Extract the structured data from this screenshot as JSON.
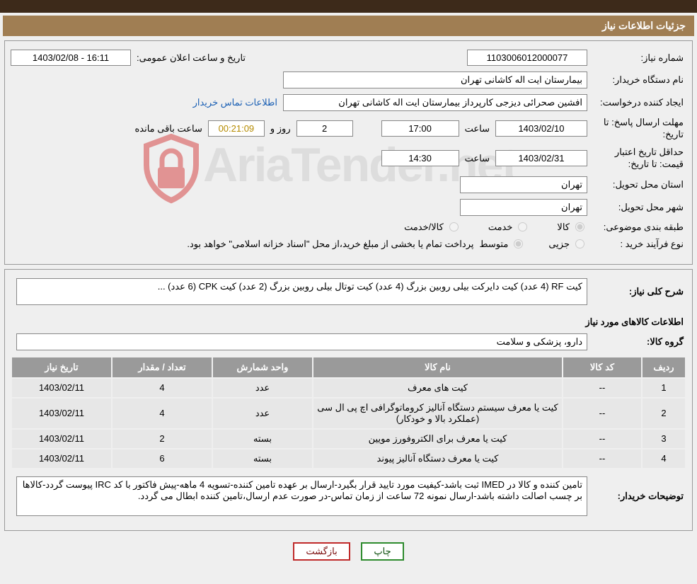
{
  "titleBar": "جزئیات اطلاعات نیاز",
  "watermark_text": "AriaTender.net",
  "labels": {
    "needNo": "شماره نیاز:",
    "announceDT": "تاریخ و ساعت اعلان عمومی:",
    "buyerOrg": "نام دستگاه خریدار:",
    "requester": "ایجاد کننده درخواست:",
    "buyerContact": "اطلاعات تماس خریدار",
    "deadline": "مهلت ارسال پاسخ:",
    "toDate": "تا تاریخ:",
    "hour": "ساعت",
    "daysAnd": "روز و",
    "remaining": "ساعت باقی مانده",
    "validity": "حداقل تاریخ اعتبار قیمت:",
    "deliveryProvince": "استان محل تحویل:",
    "deliveryCity": "شهر محل تحویل:",
    "category": "طبقه بندی موضوعی:",
    "purchaseType": "نوع فرآیند خرید :",
    "cat_goods": "کالا",
    "cat_service": "خدمت",
    "cat_goodservice": "کالا/خدمت",
    "pt_minor": "جزیی",
    "pt_medium": "متوسط",
    "payNote": "پرداخت تمام یا بخشی از مبلغ خرید،از محل \"اسناد خزانه اسلامی\" خواهد بود.",
    "generalDesc": "شرح کلی نیاز:",
    "itemsInfo": "اطلاعات کالاهای مورد نیاز",
    "goodsGroup": "گروه کالا:",
    "buyerNotes": "توضیحات خریدار:",
    "btnPrint": "چاپ",
    "btnBack": "بازگشت"
  },
  "values": {
    "needNo": "1103006012000077",
    "announceDT": "1403/02/08 - 16:11",
    "buyerOrg": "بیمارستان ایت اله کاشانی تهران",
    "requester": "افشین صحرائی دیزجی کارپرداز بیمارستان ایت اله کاشانی تهران",
    "deadlineDate": "1403/02/10",
    "deadlineTime": "17:00",
    "daysLeft": "2",
    "timeLeft": "00:21:09",
    "validityDate": "1403/02/31",
    "validityTime": "14:30",
    "province": "تهران",
    "city": "تهران",
    "generalDesc": "کیت RF (4 عدد) کیت دایرکت بیلی روبین بزرگ (4 عدد) کیت توتال بیلی روبین بزرگ (2 عدد) کیت CPK (6 عدد) ...",
    "goodsGroup": "دارو، پزشکی و سلامت",
    "buyerNotes": "تامین کننده و کالا در IMED ثبت باشد-کیفیت مورد تایید قرار بگیرد-ارسال بر عهده تامین کننده-تسویه 4 ماهه-پیش فاکتور با کد IRC پیوست گردد-کالاها بر چسب اصالت داشته باشد-ارسال نمونه 72 ساعت از زمان تماس-در صورت عدم ارسال،تامین کننده ابطال می گردد."
  },
  "table": {
    "headers": {
      "row": "ردیف",
      "code": "کد کالا",
      "name": "نام کالا",
      "unit": "واحد شمارش",
      "qty": "تعداد / مقدار",
      "date": "تاریخ نیاز"
    },
    "rows": [
      {
        "r": "1",
        "code": "--",
        "name": "کیت های معرف",
        "unit": "عدد",
        "qty": "4",
        "date": "1403/02/11"
      },
      {
        "r": "2",
        "code": "--",
        "name": "کیت یا معرف سیستم دستگاه آنالیز کروماتوگرافی اچ پی ال سی (عملکرد بالا و خودکار)",
        "unit": "عدد",
        "qty": "4",
        "date": "1403/02/11"
      },
      {
        "r": "3",
        "code": "--",
        "name": "کیت یا معرف برای الکتروفورز مویین",
        "unit": "بسته",
        "qty": "2",
        "date": "1403/02/11"
      },
      {
        "r": "4",
        "code": "--",
        "name": "کیت یا معرف دستگاه آنالیز پیوند",
        "unit": "بسته",
        "qty": "6",
        "date": "1403/02/11"
      }
    ]
  },
  "colors": {
    "topbar": "#3d2a1a",
    "titlebar": "#a07e53",
    "panel_bg": "#efefef",
    "border": "#999999",
    "th_bg": "#9a9a9a",
    "td_bg": "#e7e7e7",
    "link": "#1a5fb4",
    "remain": "#b58b00",
    "btn_print": "#2e8b2e",
    "btn_back": "#c02a2a",
    "watermark_shield": "#d43a3a"
  }
}
